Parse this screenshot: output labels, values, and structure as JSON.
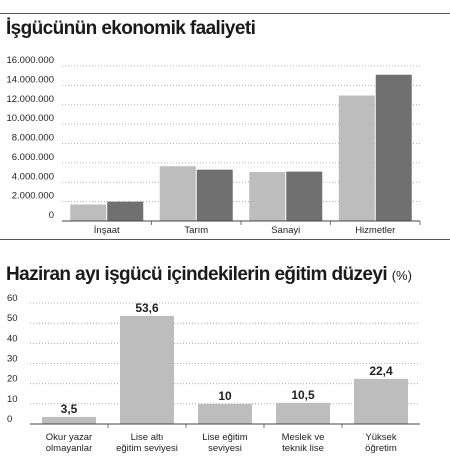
{
  "chart_data": [
    {
      "type": "bar",
      "title": "İşgücünün ekonomik faaliyeti",
      "categories": [
        "İnşaat",
        "Tarım",
        "Sanayi",
        "Hizmetler"
      ],
      "series": [
        {
          "values": [
            1700000,
            5650000,
            5050000,
            12950000
          ],
          "color": "#bdbdbe"
        },
        {
          "values": [
            2000000,
            5300000,
            5100000,
            15100000
          ],
          "color": "#707071"
        }
      ],
      "yticks": [
        0,
        2000000,
        4000000,
        6000000,
        8000000,
        10000000,
        12000000,
        14000000,
        16000000
      ],
      "ytick_labels": [
        "0",
        "2.000.000",
        "4.000.000",
        "6.000.000",
        "8.000.000",
        "10.000.000",
        "12.000.000",
        "14.000.000",
        "16.000.000"
      ],
      "ylim": [
        0,
        16000000
      ],
      "grid": true,
      "gridline_style": "dotted"
    },
    {
      "type": "bar",
      "title": "Haziran ayı işgücü içindekilerin eğitim düzeyi",
      "title_unit": "(%)",
      "categories": [
        [
          "Okur yazar",
          "olmayanlar"
        ],
        [
          "Lise altı",
          "eğitim seviyesi"
        ],
        [
          "Lise eğitim",
          "seviyesi"
        ],
        [
          "Meslek ve",
          "teknik lise"
        ],
        [
          "Yüksek",
          "öğretim"
        ]
      ],
      "values": [
        3.5,
        53.6,
        10,
        10.5,
        22.4
      ],
      "data_labels": [
        "3,5",
        "53,6",
        "10",
        "10,5",
        "22,4"
      ],
      "color": "#bdbdbe",
      "yticks": [
        0,
        10,
        20,
        30,
        40,
        50,
        60
      ],
      "ytick_labels": [
        "0",
        "10",
        "20",
        "30",
        "40",
        "50",
        "60"
      ],
      "ylim": [
        0,
        60
      ],
      "grid": true,
      "gridline_style": "dotted"
    }
  ]
}
